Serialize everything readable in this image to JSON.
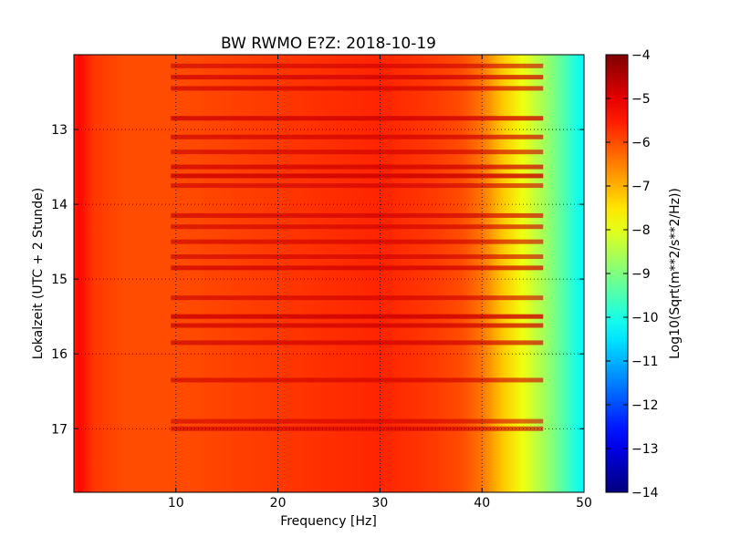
{
  "chart_data": {
    "type": "heatmap",
    "title": "BW RWMO E?Z: 2018-10-19",
    "xlabel": "Frequency [Hz]",
    "ylabel": "Lokalzeit (UTC + 2 Stunde)",
    "colorbar_label": "Log10(Sqrt(m**2/s**2/Hz))",
    "xlim": [
      0,
      50
    ],
    "ylim": [
      12.0,
      17.85
    ],
    "y_inverted": true,
    "x_ticks": [
      10,
      20,
      30,
      40,
      50
    ],
    "x_tick_labels": [
      "10",
      "20",
      "30",
      "40",
      "50"
    ],
    "y_ticks": [
      13,
      14,
      15,
      16,
      17
    ],
    "y_tick_labels": [
      "13",
      "14",
      "15",
      "16",
      "17"
    ],
    "colorbar_range": [
      -14,
      -4
    ],
    "colorbar_ticks": [
      -4,
      -5,
      -6,
      -7,
      -8,
      -9,
      -10,
      -11,
      -12,
      -13,
      -14
    ],
    "colorbar_tick_labels": [
      "−4",
      "−5",
      "−6",
      "−7",
      "−8",
      "−9",
      "−10",
      "−11",
      "−12",
      "−13",
      "−14"
    ],
    "colormap": "jet",
    "grid": true,
    "frequency_profile": {
      "frequency_hz": [
        0,
        0.5,
        2,
        5,
        10,
        15,
        20,
        25,
        30,
        35,
        38,
        40,
        42,
        44,
        46,
        48,
        49,
        50
      ],
      "log10_amplitude": [
        -5.6,
        -5.3,
        -5.8,
        -6.0,
        -6.0,
        -5.9,
        -5.8,
        -5.7,
        -5.6,
        -5.8,
        -6.0,
        -6.4,
        -7.2,
        -7.9,
        -8.6,
        -9.4,
        -9.9,
        -10.3
      ]
    },
    "strong_bands": [
      {
        "time": 12.15,
        "level": 0.6
      },
      {
        "time": 12.3,
        "level": 0.8
      },
      {
        "time": 12.45,
        "level": 0.7
      },
      {
        "time": 12.85,
        "level": 0.9
      },
      {
        "time": 13.1,
        "level": 0.7
      },
      {
        "time": 13.3,
        "level": 0.6
      },
      {
        "time": 13.5,
        "level": 0.8
      },
      {
        "time": 13.62,
        "level": 1.0
      },
      {
        "time": 13.75,
        "level": 0.6
      },
      {
        "time": 14.15,
        "level": 0.7
      },
      {
        "time": 14.3,
        "level": 0.6
      },
      {
        "time": 14.5,
        "level": 0.6
      },
      {
        "time": 14.7,
        "level": 0.6
      },
      {
        "time": 14.85,
        "level": 0.8
      },
      {
        "time": 15.25,
        "level": 0.6
      },
      {
        "time": 15.5,
        "level": 1.0
      },
      {
        "time": 15.62,
        "level": 0.8
      },
      {
        "time": 15.85,
        "level": 0.7
      },
      {
        "time": 16.35,
        "level": 0.6
      },
      {
        "time": 16.9,
        "level": 0.5
      },
      {
        "time": 17.0,
        "level": 0.6
      }
    ]
  },
  "colors": {
    "jet_stops": [
      "#00007f",
      "#0000ff",
      "#007fff",
      "#00ffff",
      "#7fff7f",
      "#ffff00",
      "#ff7f00",
      "#ff0000",
      "#7f0000"
    ]
  }
}
